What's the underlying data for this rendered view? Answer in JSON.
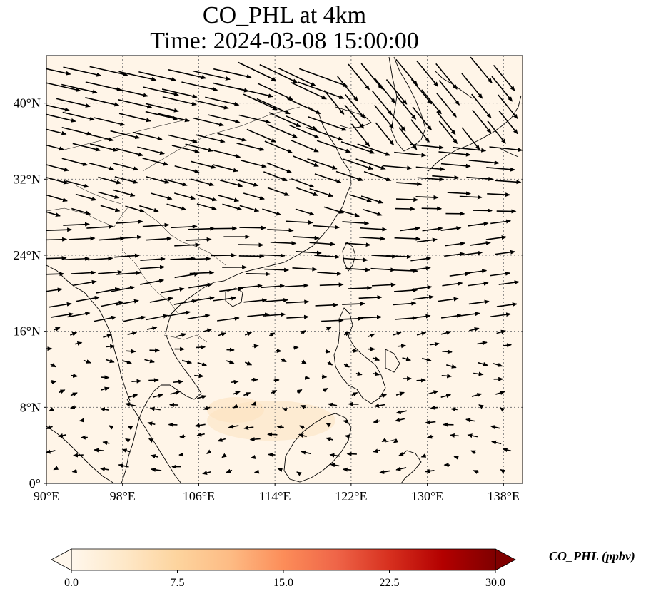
{
  "title": {
    "line1": "CO_PHL at 4km",
    "line2": "Time: 2024-03-08 15:00:00"
  },
  "map": {
    "variable": "CO_PHL",
    "height": "4km",
    "time": "2024-03-08 15:00:00",
    "projection": "PlateCarree",
    "lon_range": [
      90,
      140
    ],
    "lat_range": [
      0,
      45
    ],
    "lon_ticks": [
      "90°E",
      "98°E",
      "106°E",
      "114°E",
      "122°E",
      "130°E",
      "138°E"
    ],
    "lat_ticks": [
      "0°",
      "8°N",
      "16°N",
      "24°N",
      "32°N",
      "40°N"
    ],
    "gridlines": "dotted",
    "background_color": "#fff5e8",
    "coastline_color": "#000000",
    "wind_vectors": "black quiver arrows; westerly flow strongest in the north-east, weak variable flow near the equator"
  },
  "colorbar": {
    "title": "CO_PHL (ppbv)",
    "min": 0.0,
    "max": 30.0,
    "extend": "both",
    "tick_labels": [
      "0.0",
      "7.5",
      "15.0",
      "22.5",
      "30.0"
    ],
    "colormap": "OrRd",
    "colors": [
      "#fff7ec",
      "#fee8c8",
      "#fdd49e",
      "#fdbb84",
      "#fc8d59",
      "#ef6548",
      "#d7301f",
      "#b30000",
      "#7f0000"
    ]
  }
}
